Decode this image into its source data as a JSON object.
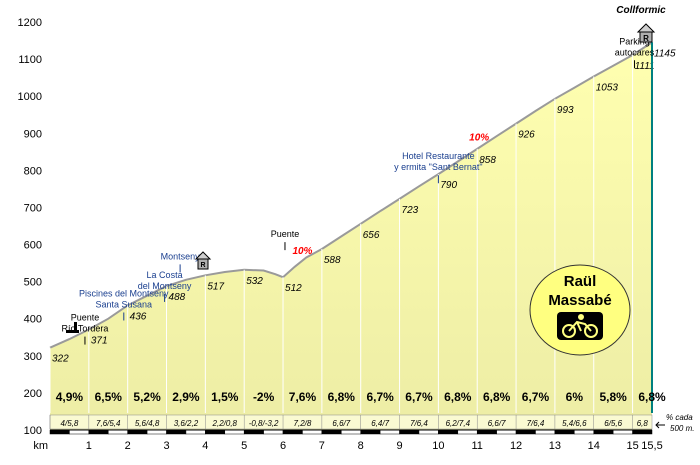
{
  "chart_data": {
    "type": "area",
    "title": "Collformic",
    "xlabel": "km",
    "ylabel": "",
    "xlim": [
      0,
      15.5
    ],
    "ylim": [
      100,
      1200
    ],
    "y_ticks": [
      100,
      200,
      300,
      400,
      500,
      600,
      700,
      800,
      900,
      1000,
      1100,
      1200
    ],
    "x_ticks": [
      "0",
      "1",
      "2",
      "3",
      "4",
      "5",
      "6",
      "7",
      "8",
      "9",
      "10",
      "11",
      "12",
      "13",
      "14",
      "15",
      "15,5"
    ],
    "profile": [
      {
        "km": 0,
        "alt": 322
      },
      {
        "km": 0.5,
        "alt": 345
      },
      {
        "km": 1,
        "alt": 371
      },
      {
        "km": 1.5,
        "alt": 400
      },
      {
        "km": 2,
        "alt": 436
      },
      {
        "km": 2.5,
        "alt": 462
      },
      {
        "km": 3,
        "alt": 488
      },
      {
        "km": 3.5,
        "alt": 505
      },
      {
        "km": 4,
        "alt": 517
      },
      {
        "km": 4.5,
        "alt": 526
      },
      {
        "km": 5,
        "alt": 532
      },
      {
        "km": 5.5,
        "alt": 530
      },
      {
        "km": 5.8,
        "alt": 520
      },
      {
        "km": 6,
        "alt": 512
      },
      {
        "km": 6.3,
        "alt": 540
      },
      {
        "km": 6.6,
        "alt": 565
      },
      {
        "km": 7,
        "alt": 588
      },
      {
        "km": 7.5,
        "alt": 622
      },
      {
        "km": 8,
        "alt": 656
      },
      {
        "km": 8.5,
        "alt": 690
      },
      {
        "km": 9,
        "alt": 723
      },
      {
        "km": 9.5,
        "alt": 757
      },
      {
        "km": 10,
        "alt": 790
      },
      {
        "km": 10.5,
        "alt": 824
      },
      {
        "km": 11,
        "alt": 858
      },
      {
        "km": 11.5,
        "alt": 892
      },
      {
        "km": 12,
        "alt": 926
      },
      {
        "km": 12.5,
        "alt": 960
      },
      {
        "km": 13,
        "alt": 993
      },
      {
        "km": 13.5,
        "alt": 1023
      },
      {
        "km": 14,
        "alt": 1053
      },
      {
        "km": 14.5,
        "alt": 1082
      },
      {
        "km": 15,
        "alt": 1111
      },
      {
        "km": 15.5,
        "alt": 1145
      }
    ],
    "point_labels": [
      {
        "km": 0,
        "alt": 322,
        "text": "322"
      },
      {
        "km": 1,
        "alt": 371,
        "text": "371"
      },
      {
        "km": 2,
        "alt": 436,
        "text": "436"
      },
      {
        "km": 3,
        "alt": 488,
        "text": "488"
      },
      {
        "km": 4,
        "alt": 517,
        "text": "517"
      },
      {
        "km": 5,
        "alt": 532,
        "text": "532"
      },
      {
        "km": 6,
        "alt": 512,
        "text": "512"
      },
      {
        "km": 7,
        "alt": 588,
        "text": "588"
      },
      {
        "km": 8,
        "alt": 656,
        "text": "656"
      },
      {
        "km": 9,
        "alt": 723,
        "text": "723"
      },
      {
        "km": 10,
        "alt": 790,
        "text": "790"
      },
      {
        "km": 11,
        "alt": 858,
        "text": "858"
      },
      {
        "km": 12,
        "alt": 926,
        "text": "926"
      },
      {
        "km": 13,
        "alt": 993,
        "text": "993"
      },
      {
        "km": 14,
        "alt": 1053,
        "text": "1053"
      },
      {
        "km": 15,
        "alt": 1111,
        "text": "1111"
      },
      {
        "km": 15.5,
        "alt": 1145,
        "text": "1145"
      }
    ],
    "segment_gradients": [
      "4,9%",
      "6,5%",
      "5,2%",
      "2,9%",
      "1,5%",
      "-2%",
      "7,6%",
      "6,8%",
      "6,7%",
      "6,7%",
      "6,8%",
      "6,8%",
      "6,7%",
      "6%",
      "5,8%",
      "6,8%"
    ],
    "half_km_gradients": [
      "4/5,8",
      "7,6/5,4",
      "5,6/4,8",
      "3,6/2,2",
      "2,2/0,8",
      "-0,8/-3,2",
      "7,2/8",
      "6,6/7",
      "6,4/7",
      "7/6,4",
      "6,2/7,4",
      "6,6/7",
      "7/6,4",
      "5,4/6,6",
      "6/5,6",
      "6,8"
    ],
    "side_note": [
      "% cada",
      "500 m."
    ],
    "annotations": [
      {
        "id": "rio-tordera",
        "km": 0.9,
        "alt": 395,
        "lines": [
          "Puente",
          "Río Tordera"
        ],
        "color": "#000000"
      },
      {
        "id": "piscines",
        "km": 1.9,
        "alt": 460,
        "lines": [
          "Piscines del Montseny",
          "Santa Susana"
        ],
        "color": "#1a3f8f"
      },
      {
        "id": "la-costa",
        "km": 2.95,
        "alt": 510,
        "lines": [
          "La Costa",
          "del Montseny"
        ],
        "color": "#1a3f8f"
      },
      {
        "id": "montseny",
        "km": 3.35,
        "alt": 560,
        "lines": [
          "Montseny"
        ],
        "color": "#1a3f8f"
      },
      {
        "id": "puente",
        "km": 6.05,
        "alt": 620,
        "lines": [
          "Puente"
        ],
        "color": "#000000"
      },
      {
        "id": "hotel",
        "km": 10,
        "alt": 830,
        "lines": [
          "Hotel Restaurante",
          "y ermita \"Sant Bernat\""
        ],
        "color": "#1a3f8f"
      },
      {
        "id": "parking",
        "km": 15.05,
        "alt": 1140,
        "lines": [
          "Parking",
          "autocares"
        ],
        "color": "#000000"
      }
    ],
    "steep_marks": [
      {
        "km": 6.5,
        "alt": 575,
        "text": "10%"
      },
      {
        "km": 11.05,
        "alt": 880,
        "text": "10%"
      }
    ],
    "badge": {
      "name_lines": [
        "Raül",
        "Massabé"
      ],
      "bike_icon": "cyclist-icon"
    },
    "colors": {
      "fill": "#ffffb0",
      "fill_bottom": "#ededa5",
      "profile_line": "#9a9a9a",
      "end_line": "#008080",
      "steep": "#ff0000",
      "note": "#1a3f8f",
      "badge": "#ffff80"
    }
  }
}
